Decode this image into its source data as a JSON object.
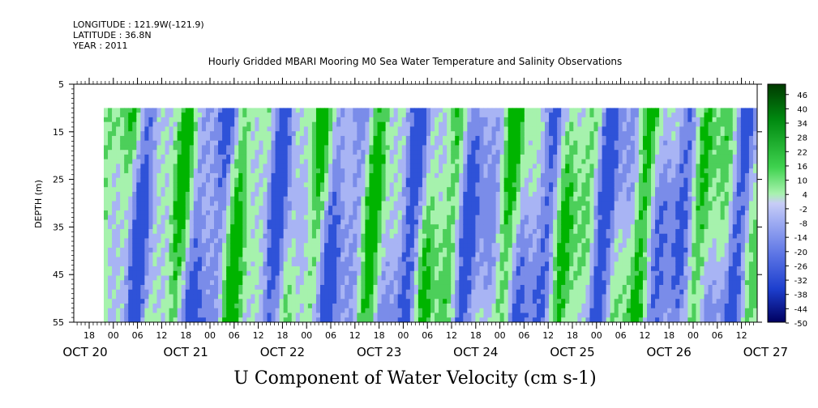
{
  "header": {
    "longitude": "LONGITUDE : 121.9W(-121.9)",
    "latitude": "LATITUDE : 36.8N",
    "year": "YEAR : 2011"
  },
  "chart_data": {
    "type": "heatmap",
    "title": "Hourly Gridded MBARI Mooring M0 Sea Water Temperature and Salinity Observations",
    "xlabel": "U Component of Water Velocity (cm s-1)",
    "ylabel": "DEPTH (m)",
    "y_ticks": [
      5,
      15,
      25,
      35,
      45,
      55
    ],
    "ylim": [
      5,
      55
    ],
    "y_reversed": true,
    "data_depth_range": [
      10,
      55
    ],
    "x_hour_ticks": [
      "18",
      "00",
      "06",
      "12",
      "18",
      "00",
      "06",
      "12",
      "18",
      "00",
      "06",
      "12",
      "18",
      "00",
      "06",
      "12",
      "18",
      "00",
      "06",
      "12",
      "18",
      "00",
      "06",
      "12",
      "18",
      "00",
      "06",
      "12"
    ],
    "x_day_labels": [
      "OCT 20",
      "OCT 21",
      "OCT 22",
      "OCT 23",
      "OCT 24",
      "OCT 25",
      "OCT 26",
      "OCT 27"
    ],
    "colorbar_labels": [
      46,
      40,
      34,
      28,
      22,
      16,
      10,
      4,
      -2,
      -8,
      -14,
      -20,
      -26,
      -32,
      -38,
      -44,
      -50
    ],
    "colorbar_range": [
      -50,
      50
    ],
    "colors": {
      "green_strong": "#00b400",
      "green_mid": "#4ccf5a",
      "green_light": "#a6f2ad",
      "blue_light": "#a8b4f4",
      "blue_mid": "#7a8ce9",
      "blue_dark": "#2f52d8",
      "navy": "#000060"
    }
  }
}
